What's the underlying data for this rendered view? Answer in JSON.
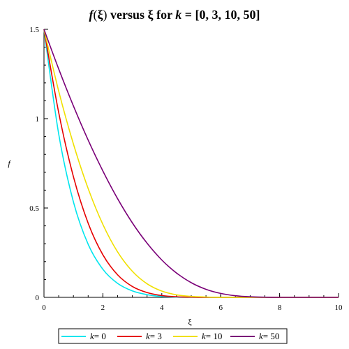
{
  "chart_data": {
    "type": "line",
    "title_parts": {
      "f": "f",
      "paren_open": "(",
      "xi": "ξ",
      "paren_close": ")",
      "versus": " versus ξ for ",
      "k": "k",
      "rest": " = [0, 3, 10, 50]"
    },
    "title": "f(ξ) versus ξ for k = [0, 3, 10, 50]",
    "xlabel": "ξ",
    "ylabel": "f",
    "xlim": [
      0,
      10
    ],
    "ylim": [
      0,
      1.5
    ],
    "x_ticks": [
      0,
      2,
      4,
      6,
      8,
      10
    ],
    "x_tick_labels": [
      "0",
      "2",
      "4",
      "6",
      "8",
      "10"
    ],
    "y_ticks": [
      0,
      0.5,
      1,
      1.5
    ],
    "y_tick_labels": [
      "0",
      "0.5",
      "1",
      "1.5"
    ],
    "x": [
      0,
      0.5,
      1,
      1.5,
      2,
      2.5,
      3,
      3.5,
      4,
      4.5,
      5,
      5.5,
      6,
      6.5,
      7,
      7.5,
      8,
      8.5,
      9,
      9.5,
      10
    ],
    "series": [
      {
        "name": "k = 0",
        "legend_k": "k",
        "legend_val": "= 0",
        "color": "#00e5ee",
        "values": [
          1.5,
          0.914,
          0.534,
          0.297,
          0.157,
          0.078,
          0.036,
          0.015,
          0.005,
          0.001,
          0,
          0,
          0,
          0,
          0,
          0,
          0,
          0,
          0,
          0,
          0
        ]
      },
      {
        "name": "k = 3",
        "legend_k": "k",
        "legend_val": "= 3",
        "color": "#e60000",
        "values": [
          1.5,
          1.034,
          0.675,
          0.415,
          0.238,
          0.126,
          0.061,
          0.027,
          0.01,
          0.003,
          0.001,
          0,
          0,
          0,
          0,
          0,
          0,
          0,
          0,
          0,
          0
        ]
      },
      {
        "name": "k = 10",
        "legend_k": "k",
        "legend_val": "= 10",
        "color": "#f0e000",
        "values": [
          1.5,
          1.154,
          0.858,
          0.609,
          0.408,
          0.254,
          0.146,
          0.076,
          0.035,
          0.014,
          0.005,
          0.002,
          0,
          0,
          0,
          0,
          0,
          0,
          0,
          0,
          0
        ]
      },
      {
        "name": "k = 50",
        "legend_k": "k",
        "legend_val": "= 50",
        "color": "#7a0078",
        "values": [
          1.5,
          1.278,
          1.071,
          0.88,
          0.707,
          0.552,
          0.417,
          0.303,
          0.209,
          0.136,
          0.082,
          0.045,
          0.022,
          0.009,
          0.003,
          0.001,
          0,
          0,
          0,
          0,
          0
        ]
      }
    ],
    "grid": false,
    "legend_position": "bottom"
  }
}
